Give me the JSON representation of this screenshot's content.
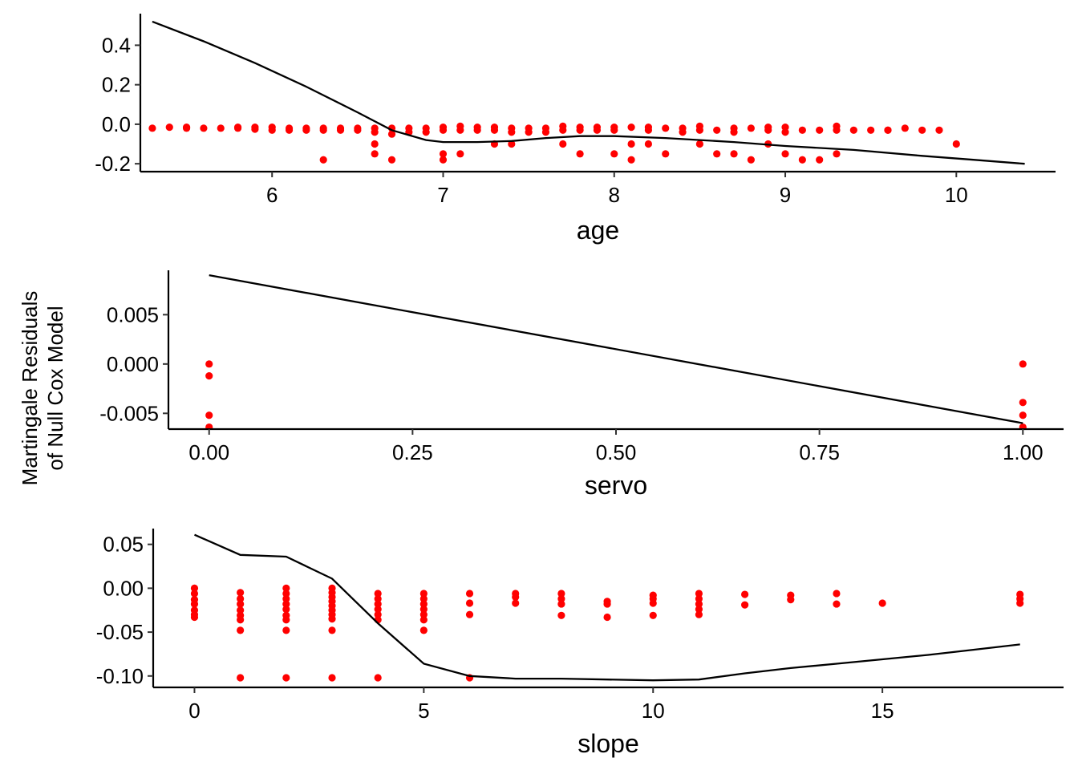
{
  "shared": {
    "ylabel_lines": [
      "Martingale Residuals",
      "of Null Cox Model"
    ],
    "point_color": "#ff0000",
    "line_color": "#000000"
  },
  "chart_data": [
    {
      "type": "scatter",
      "xlabel": "age",
      "xlim": [
        5.23,
        10.58
      ],
      "ylim": [
        -0.24,
        0.56
      ],
      "xticks": [
        6,
        7,
        8,
        9,
        10
      ],
      "xtick_labels": [
        "6",
        "7",
        "8",
        "9",
        "10"
      ],
      "yticks": [
        -0.2,
        0.0,
        0.2,
        0.4
      ],
      "ytick_labels": [
        "-0.2",
        "0.0",
        "0.2",
        "0.4"
      ],
      "smooth": {
        "x": [
          5.3,
          5.6,
          5.9,
          6.2,
          6.5,
          6.7,
          6.9,
          7.0,
          7.2,
          7.4,
          7.6,
          7.8,
          8.0,
          8.3,
          8.7,
          9.0,
          9.4,
          9.8,
          10.1,
          10.4
        ],
        "y": [
          0.52,
          0.42,
          0.31,
          0.19,
          0.06,
          -0.03,
          -0.08,
          -0.09,
          -0.09,
          -0.085,
          -0.07,
          -0.06,
          -0.06,
          -0.07,
          -0.09,
          -0.11,
          -0.13,
          -0.16,
          -0.18,
          -0.2
        ]
      },
      "points": {
        "x": [
          5.3,
          5.4,
          5.5,
          5.5,
          5.6,
          5.7,
          5.8,
          5.8,
          5.9,
          5.9,
          6.0,
          6.0,
          6.1,
          6.1,
          6.2,
          6.2,
          6.3,
          6.3,
          6.3,
          6.4,
          6.4,
          6.5,
          6.5,
          6.6,
          6.6,
          6.6,
          6.6,
          6.7,
          6.7,
          6.7,
          6.8,
          6.8,
          6.9,
          6.9,
          7.0,
          7.0,
          7.0,
          7.0,
          7.1,
          7.1,
          7.1,
          7.2,
          7.2,
          7.3,
          7.3,
          7.3,
          7.4,
          7.4,
          7.4,
          7.5,
          7.5,
          7.6,
          7.6,
          7.7,
          7.7,
          7.7,
          7.8,
          7.8,
          7.8,
          7.9,
          7.9,
          8.0,
          8.0,
          8.0,
          8.1,
          8.1,
          8.1,
          8.2,
          8.2,
          8.2,
          8.3,
          8.3,
          8.4,
          8.4,
          8.5,
          8.5,
          8.5,
          8.6,
          8.6,
          8.7,
          8.7,
          8.7,
          8.8,
          8.8,
          8.9,
          8.9,
          8.9,
          9.0,
          9.0,
          9.0,
          9.1,
          9.1,
          9.2,
          9.2,
          9.3,
          9.3,
          9.3,
          9.4,
          9.5,
          9.6,
          9.6,
          9.7,
          9.8,
          9.9,
          10.0
        ],
        "y": [
          -0.02,
          -0.015,
          -0.015,
          -0.02,
          -0.02,
          -0.02,
          -0.015,
          -0.02,
          -0.015,
          -0.025,
          -0.015,
          -0.03,
          -0.02,
          -0.03,
          -0.02,
          -0.03,
          -0.02,
          -0.03,
          -0.18,
          -0.02,
          -0.03,
          -0.02,
          -0.03,
          -0.02,
          -0.04,
          -0.1,
          -0.15,
          -0.02,
          -0.05,
          -0.18,
          -0.02,
          -0.04,
          -0.02,
          -0.04,
          -0.015,
          -0.03,
          -0.15,
          -0.18,
          -0.01,
          -0.03,
          -0.15,
          -0.015,
          -0.03,
          -0.015,
          -0.03,
          -0.1,
          -0.02,
          -0.04,
          -0.1,
          -0.02,
          -0.04,
          -0.02,
          -0.04,
          -0.01,
          -0.03,
          -0.1,
          -0.015,
          -0.03,
          -0.15,
          -0.015,
          -0.03,
          -0.015,
          -0.03,
          -0.15,
          -0.015,
          -0.1,
          -0.18,
          -0.015,
          -0.03,
          -0.1,
          -0.02,
          -0.15,
          -0.02,
          -0.04,
          -0.01,
          -0.03,
          -0.1,
          -0.03,
          -0.15,
          -0.02,
          -0.04,
          -0.15,
          -0.02,
          -0.18,
          -0.015,
          -0.03,
          -0.1,
          -0.015,
          -0.04,
          -0.15,
          -0.03,
          -0.18,
          -0.03,
          -0.18,
          -0.01,
          -0.03,
          -0.15,
          -0.03,
          -0.03,
          -0.03,
          -0.03,
          -0.02,
          -0.03,
          -0.03,
          -0.1
        ]
      }
    },
    {
      "type": "scatter",
      "xlabel": "servo",
      "xlim": [
        -0.05,
        1.05
      ],
      "ylim": [
        -0.0066,
        0.0095
      ],
      "xticks": [
        0.0,
        0.25,
        0.5,
        0.75,
        1.0
      ],
      "xtick_labels": [
        "0.00",
        "0.25",
        "0.50",
        "0.75",
        "1.00"
      ],
      "yticks": [
        -0.005,
        0.0,
        0.005
      ],
      "ytick_labels": [
        "-0.005",
        "0.000",
        "0.005"
      ],
      "smooth": {
        "x": [
          0.0,
          1.0
        ],
        "y": [
          0.009,
          -0.006
        ]
      },
      "points": {
        "x": [
          0.0,
          0.0,
          0.0,
          0.0,
          1.0,
          1.0,
          1.0,
          1.0
        ],
        "y": [
          0.0,
          -0.0012,
          -0.0052,
          -0.0064,
          0.0,
          -0.0039,
          -0.0052,
          -0.0064
        ]
      }
    },
    {
      "type": "scatter",
      "xlabel": "slope",
      "xlim": [
        -0.9,
        18.95
      ],
      "ylim": [
        -0.113,
        0.068
      ],
      "xticks": [
        0,
        5,
        10,
        15
      ],
      "xtick_labels": [
        "0",
        "5",
        "10",
        "15"
      ],
      "yticks": [
        -0.1,
        -0.05,
        0.0,
        0.05
      ],
      "ytick_labels": [
        "-0.10",
        "-0.05",
        "0.00",
        "0.05"
      ],
      "smooth": {
        "x": [
          0,
          1,
          2,
          3,
          4,
          5,
          6,
          7,
          8,
          9,
          10,
          11,
          12,
          13,
          14,
          15,
          16,
          17,
          18
        ],
        "y": [
          0.061,
          0.038,
          0.036,
          0.011,
          -0.04,
          -0.086,
          -0.1,
          -0.103,
          -0.103,
          -0.104,
          -0.105,
          -0.104,
          -0.097,
          -0.091,
          -0.086,
          -0.081,
          -0.076,
          -0.07,
          -0.064
        ]
      },
      "points": {
        "x": [
          0,
          0,
          0,
          0,
          0,
          0,
          0,
          1,
          1,
          1,
          1,
          1,
          1,
          1,
          1,
          2,
          2,
          2,
          2,
          2,
          2,
          2,
          2,
          2,
          3,
          3,
          3,
          3,
          3,
          3,
          3,
          3,
          3,
          3,
          4,
          4,
          4,
          4,
          4,
          4,
          4,
          5,
          5,
          5,
          5,
          5,
          5,
          5,
          6,
          6,
          6,
          6,
          7,
          7,
          7,
          8,
          8,
          8,
          8,
          9,
          9,
          9,
          10,
          10,
          10,
          10,
          11,
          11,
          11,
          11,
          11,
          12,
          12,
          13,
          13,
          14,
          14,
          15,
          18,
          18,
          18
        ],
        "y": [
          0.0,
          -0.006,
          -0.013,
          -0.018,
          -0.025,
          -0.03,
          -0.033,
          -0.005,
          -0.012,
          -0.018,
          -0.025,
          -0.031,
          -0.036,
          -0.048,
          -0.102,
          0.0,
          -0.006,
          -0.012,
          -0.018,
          -0.024,
          -0.031,
          -0.036,
          -0.048,
          -0.102,
          0.0,
          -0.005,
          -0.01,
          -0.015,
          -0.02,
          -0.025,
          -0.03,
          -0.035,
          -0.048,
          -0.102,
          -0.006,
          -0.012,
          -0.018,
          -0.024,
          -0.03,
          -0.036,
          -0.102,
          -0.006,
          -0.012,
          -0.018,
          -0.024,
          -0.03,
          -0.036,
          -0.048,
          -0.006,
          -0.017,
          -0.03,
          -0.102,
          -0.006,
          -0.01,
          -0.017,
          -0.006,
          -0.012,
          -0.018,
          -0.031,
          -0.015,
          -0.018,
          -0.033,
          -0.008,
          -0.017,
          -0.031,
          -0.012,
          -0.006,
          -0.012,
          -0.018,
          -0.024,
          -0.03,
          -0.007,
          -0.019,
          -0.008,
          -0.013,
          -0.006,
          -0.018,
          -0.017,
          -0.007,
          -0.012,
          -0.017
        ]
      }
    }
  ]
}
